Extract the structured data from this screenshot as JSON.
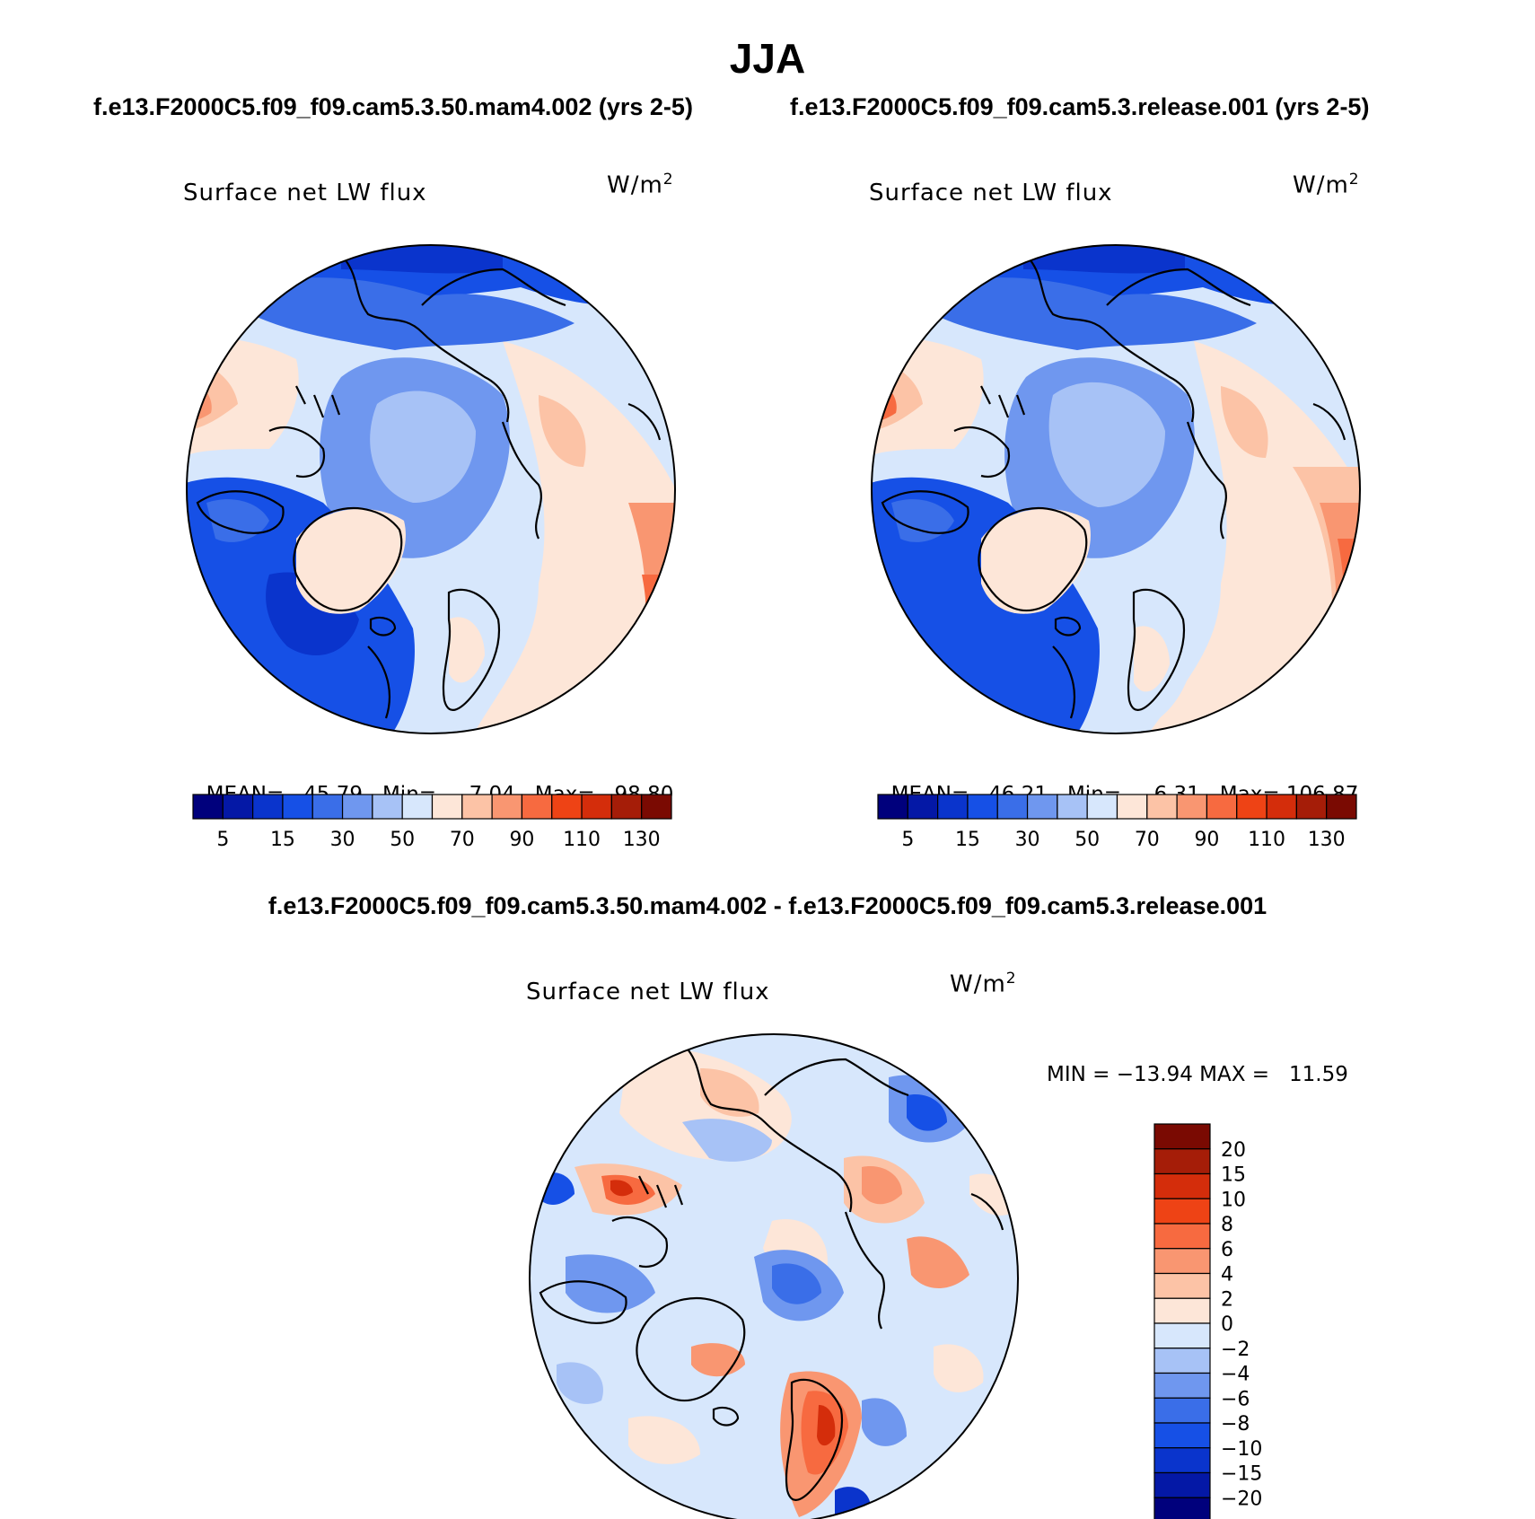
{
  "season": "JJA",
  "headers": {
    "left": "f.e13.F2000C5.f09_f09.cam5.3.50.mam4.002 (yrs 2-5)",
    "right": "f.e13.F2000C5.f09_f09.cam5.3.release.001 (yrs 2-5)",
    "diff": "f.e13.F2000C5.f09_f09.cam5.3.50.mam4.002 - f.e13.F2000C5.f09_f09.cam5.3.release.001"
  },
  "panels": [
    {
      "title": "Surface net LW flux",
      "units_base": "W/m",
      "units_exp": "2",
      "mean_label": "MEAN=",
      "mean": "45.79",
      "min_label": "Min=",
      "min": "7.04",
      "max_label": "Max=",
      "max": "98.80"
    },
    {
      "title": "Surface net LW flux",
      "units_base": "W/m",
      "units_exp": "2",
      "mean_label": "MEAN=",
      "mean": "46.21",
      "min_label": "Min=",
      "min": "6.31",
      "max_label": "Max=",
      "max": "106.87"
    },
    {
      "title": "Surface net LW flux",
      "units_base": "W/m",
      "units_exp": "2",
      "minmax": "MIN = −13.94 MAX =   11.59"
    }
  ],
  "colorbar_abs": {
    "colors": [
      "#00007c",
      "#0418a6",
      "#0a34cc",
      "#1650e6",
      "#3a6ee8",
      "#6f97ef",
      "#a7c2f6",
      "#d7e7fc",
      "#fde6d8",
      "#fcc3a6",
      "#f99671",
      "#f76a40",
      "#ee4315",
      "#d42d0b",
      "#a51d08",
      "#7a0a02"
    ],
    "tick_labels": [
      "5",
      "15",
      "30",
      "50",
      "70",
      "90",
      "110",
      "130"
    ]
  },
  "colorbar_diff": {
    "colors": [
      "#00007c",
      "#0418a6",
      "#0a34cc",
      "#1650e6",
      "#3a6ee8",
      "#6f97ef",
      "#a7c2f6",
      "#d7e7fc",
      "#fde6d8",
      "#fcc3a6",
      "#f99671",
      "#f76a40",
      "#ee4315",
      "#d42d0b",
      "#a51d08",
      "#7a0a02"
    ],
    "tick_labels": [
      "20",
      "15",
      "10",
      "8",
      "6",
      "4",
      "2",
      "0",
      "−2",
      "−4",
      "−6",
      "−8",
      "−10",
      "−15",
      "−20"
    ]
  }
}
